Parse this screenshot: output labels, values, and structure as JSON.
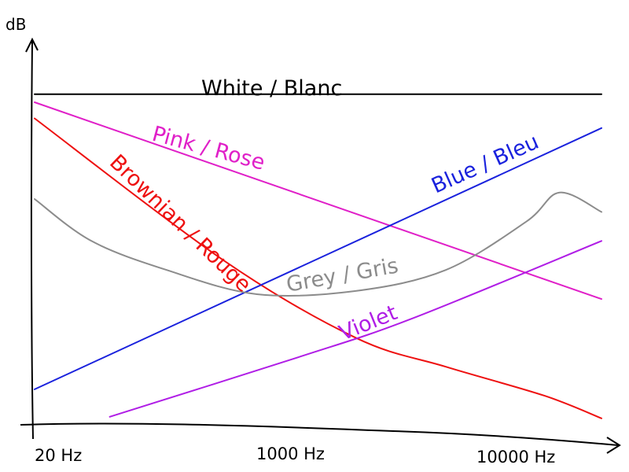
{
  "chart_data": {
    "type": "line",
    "title": "",
    "xlabel": "",
    "ylabel": "dB",
    "x_scale": "log",
    "xlim": [
      20,
      20000
    ],
    "ylim": [
      0,
      10
    ],
    "x_ticks": [
      {
        "value": 20,
        "label": "20 Hz"
      },
      {
        "value": 1000,
        "label": "1000 Hz"
      },
      {
        "value": 10000,
        "label": "10000 Hz"
      }
    ],
    "grid": false,
    "legend": "none",
    "series": [
      {
        "name": "White / Blanc",
        "color": "#000000",
        "x": [
          20,
          20000
        ],
        "y": [
          10.25,
          10.25
        ]
      },
      {
        "name": "Pink / Rose",
        "color": "#e020c8",
        "x": [
          20,
          20000
        ],
        "y": [
          10.0,
          3.9
        ]
      },
      {
        "name": "Brownian / Rouge",
        "color": "#ee1010",
        "x": [
          20,
          200,
          1000,
          3000,
          10000,
          20000
        ],
        "y": [
          9.5,
          5.1,
          2.7,
          1.8,
          0.9,
          0.2
        ]
      },
      {
        "name": "Blue / Bleu",
        "color": "#1a22dd",
        "x": [
          20,
          20000
        ],
        "y": [
          1.1,
          9.2
        ]
      },
      {
        "name": "Grey / Gris",
        "color": "#8c8c8c",
        "x": [
          20,
          40,
          100,
          300,
          1000,
          3000,
          8000,
          12000,
          20000
        ],
        "y": [
          7.0,
          5.7,
          4.8,
          4.05,
          4.15,
          4.8,
          6.3,
          7.2,
          6.6
        ]
      },
      {
        "name": "Violet",
        "color": "#b01ee6",
        "x": [
          50,
          500,
          2000,
          20000
        ],
        "y": [
          0.25,
          2.1,
          3.3,
          5.7
        ]
      }
    ]
  }
}
